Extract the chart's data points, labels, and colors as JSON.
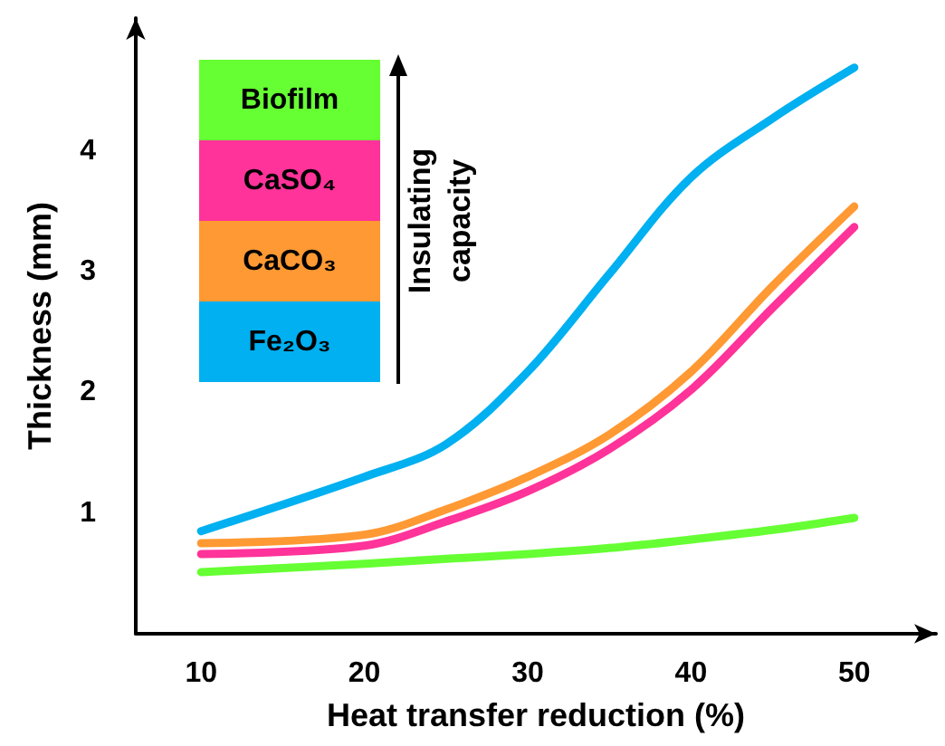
{
  "chart_data": {
    "type": "line",
    "xlabel": "Heat transfer reduction (%)",
    "ylabel": "Thickness (mm)",
    "x": [
      10,
      20,
      25,
      30,
      35,
      40,
      45,
      50
    ],
    "xlim": [
      6,
      55
    ],
    "xticks": [
      10,
      20,
      30,
      40,
      50
    ],
    "ylim": [
      0,
      5.1
    ],
    "yticks": [
      1,
      2,
      3,
      4
    ],
    "grid": false,
    "legend": "top left",
    "marker": "none",
    "line_style": "solid",
    "annotations": [
      "Insulating capacity"
    ],
    "series": [
      {
        "name": "Biofilm",
        "color": "#66ff33",
        "values": [
          0.51,
          0.58,
          0.62,
          0.66,
          0.71,
          0.78,
          0.86,
          0.96
        ]
      },
      {
        "name": "CaSO₄",
        "color": "#ff3399",
        "values": [
          0.66,
          0.73,
          0.93,
          1.18,
          1.53,
          2.02,
          2.7,
          3.37
        ]
      },
      {
        "name": "CaCO₃",
        "color": "#ff9933",
        "values": [
          0.75,
          0.82,
          1.03,
          1.3,
          1.65,
          2.17,
          2.88,
          3.54
        ]
      },
      {
        "name": "Fe₂O₃",
        "color": "#00b0f0",
        "values": [
          0.85,
          1.3,
          1.57,
          2.17,
          2.98,
          3.78,
          4.27,
          4.69
        ]
      }
    ]
  }
}
